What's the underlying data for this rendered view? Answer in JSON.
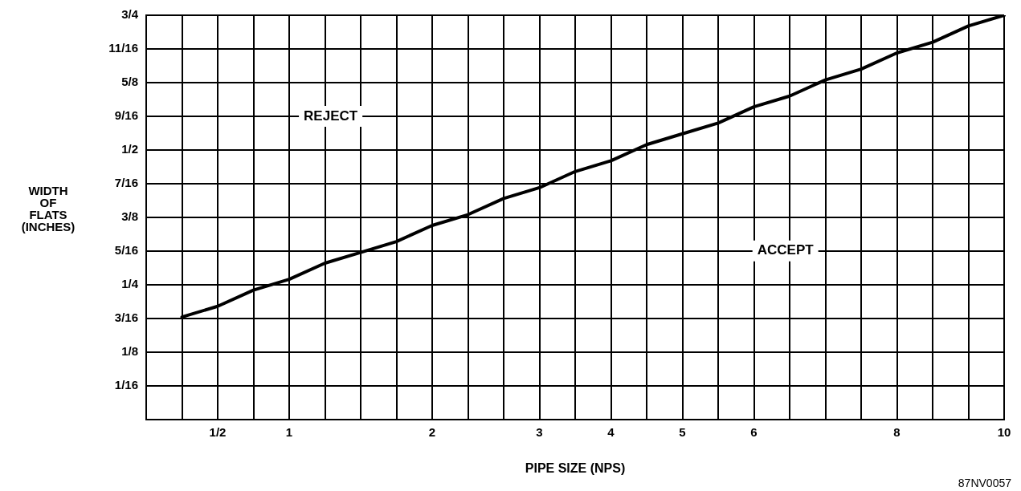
{
  "chart_data": {
    "type": "line",
    "xlabel": "PIPE SIZE (NPS)",
    "ylabel": "WIDTH OF FLATS (INCHES)",
    "categories": [
      null,
      null,
      "1/2",
      null,
      "1",
      null,
      null,
      null,
      "2",
      null,
      null,
      "3",
      null,
      "4",
      null,
      "5",
      null,
      "6",
      null,
      null,
      null,
      "8",
      null,
      null,
      "10"
    ],
    "series": [
      {
        "color": "#000000",
        "values": [
          null,
          0.19,
          0.21,
          0.24,
          0.26,
          0.29,
          0.31,
          0.33,
          0.36,
          0.38,
          0.41,
          0.43,
          0.46,
          0.48,
          0.51,
          0.53,
          0.55,
          0.58,
          0.6,
          0.63,
          0.65,
          0.68,
          0.7,
          0.73,
          0.75
        ]
      }
    ],
    "ylim": [
      0,
      0.75
    ],
    "yticks": [
      {
        "value": 0.0625,
        "label": "1/16"
      },
      {
        "value": 0.125,
        "label": "1/8"
      },
      {
        "value": 0.1875,
        "label": "3/16"
      },
      {
        "value": 0.25,
        "label": "1/4"
      },
      {
        "value": 0.3125,
        "label": "5/16"
      },
      {
        "value": 0.375,
        "label": "3/8"
      },
      {
        "value": 0.4375,
        "label": "7/16"
      },
      {
        "value": 0.5,
        "label": "1/2"
      },
      {
        "value": 0.5625,
        "label": "9/16"
      },
      {
        "value": 0.625,
        "label": "5/8"
      },
      {
        "value": 0.6875,
        "label": "11/16"
      },
      {
        "value": 0.75,
        "label": "3/4"
      }
    ],
    "grid": true,
    "legend": false,
    "marker": "none",
    "line_style": "solid",
    "annotations": [
      "REJECT",
      "ACCEPT",
      "87NV0057"
    ]
  }
}
